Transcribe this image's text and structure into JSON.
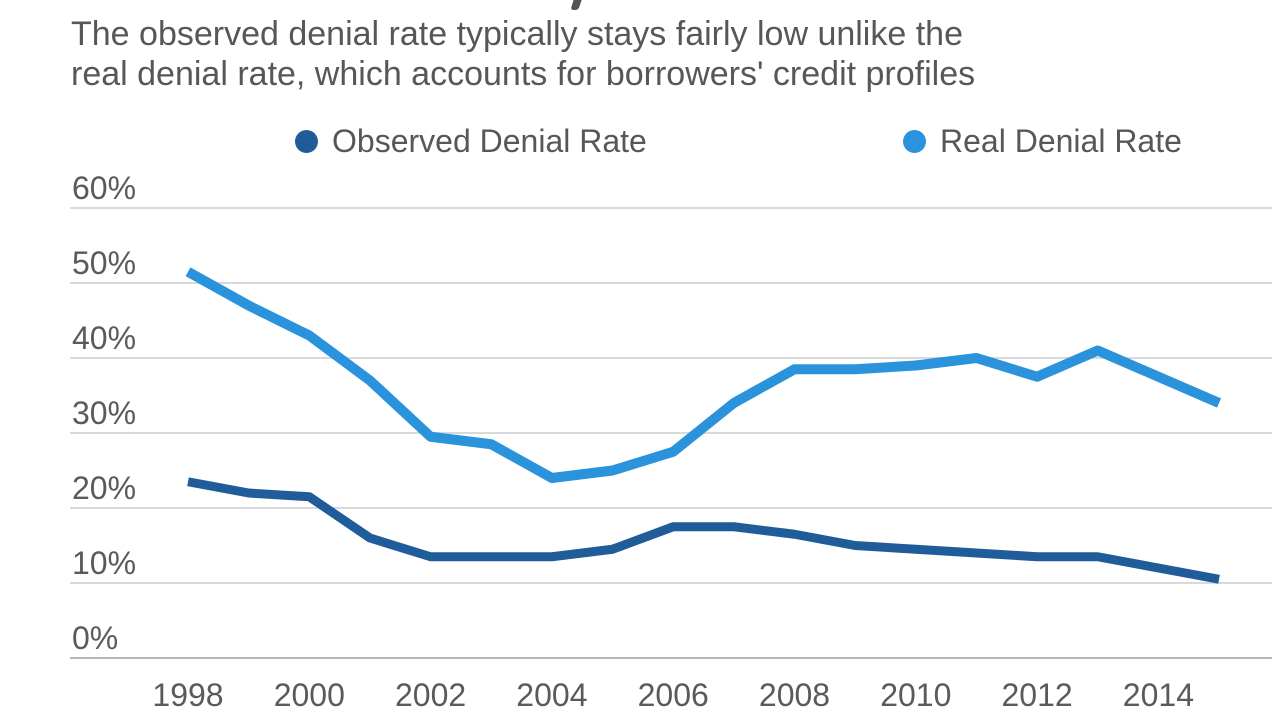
{
  "subtitle": {
    "line1": "The observed denial rate typically stays fairly low unlike the",
    "line2": "real denial rate, which accounts for borrowers' credit profiles"
  },
  "legend": {
    "items": [
      {
        "label": "Observed Denial Rate",
        "color": "#1f5c99"
      },
      {
        "label": "Real Denial Rate",
        "color": "#2a93dc"
      }
    ]
  },
  "chart_data": {
    "type": "line",
    "x": [
      1998,
      1999,
      2000,
      2001,
      2002,
      2003,
      2004,
      2005,
      2006,
      2007,
      2008,
      2009,
      2010,
      2011,
      2012,
      2013,
      2014,
      2015
    ],
    "series": [
      {
        "name": "Observed Denial Rate",
        "color": "#1f5c99",
        "values": [
          23.5,
          22,
          21.5,
          16,
          13.5,
          13.5,
          13.5,
          14.5,
          17.5,
          17.5,
          16.5,
          15,
          14.5,
          14,
          13.5,
          13.5,
          12,
          10.5
        ]
      },
      {
        "name": "Real Denial Rate",
        "color": "#2a93dc",
        "values": [
          51.5,
          47,
          43,
          37,
          29.5,
          28.5,
          24,
          25,
          27.5,
          34,
          38.5,
          38.5,
          39,
          40,
          37.5,
          41,
          37.5,
          34
        ]
      }
    ],
    "xticks": [
      "1998",
      "2000",
      "2002",
      "2004",
      "2006",
      "2008",
      "2010",
      "2012",
      "2014"
    ],
    "yticks": [
      {
        "label": "0%",
        "value": 0
      },
      {
        "label": "10%",
        "value": 10
      },
      {
        "label": "20%",
        "value": 20
      },
      {
        "label": "30%",
        "value": 30
      },
      {
        "label": "40%",
        "value": 40
      },
      {
        "label": "50%",
        "value": 50
      },
      {
        "label": "60%",
        "value": 60
      }
    ],
    "ylim": [
      0,
      62
    ],
    "grid": "horizontal",
    "legend_position": "top-center",
    "colors": {
      "grid_line": "#d9dadb",
      "axis_line": "#b3b5b7",
      "tick_text": "#595a5c",
      "subtitle_text": "#56575a"
    }
  }
}
